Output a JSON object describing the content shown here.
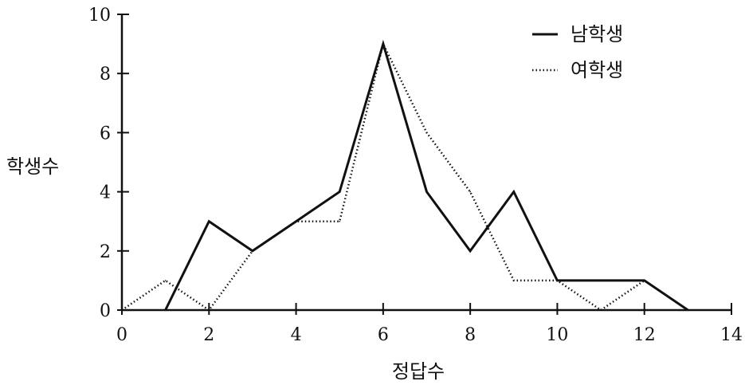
{
  "chart_data": {
    "type": "line",
    "title": "",
    "xlabel": "정답수",
    "ylabel": "학생수",
    "xlim": [
      0,
      14
    ],
    "ylim": [
      0,
      10
    ],
    "x_ticks": [
      "0",
      "2",
      "4",
      "6",
      "8",
      "10",
      "12",
      "14"
    ],
    "y_ticks": [
      "0",
      "2",
      "4",
      "6",
      "8",
      "10"
    ],
    "grid": false,
    "legend_position": "top-right",
    "series": [
      {
        "name": "남학생",
        "style": "solid",
        "color": "#111111",
        "x": [
          1,
          2,
          3,
          4,
          5,
          6,
          7,
          8,
          9,
          10,
          11,
          12,
          13
        ],
        "y": [
          0,
          3,
          2,
          3,
          4,
          9,
          4,
          2,
          4,
          1,
          1,
          1,
          0
        ]
      },
      {
        "name": "여학생",
        "style": "dotted",
        "color": "#111111",
        "x": [
          0,
          1,
          2,
          3,
          4,
          5,
          6,
          7,
          8,
          9,
          10,
          11,
          12
        ],
        "y": [
          0,
          1,
          0,
          2,
          3,
          3,
          9,
          6,
          4,
          1,
          1,
          0,
          1
        ]
      }
    ]
  }
}
